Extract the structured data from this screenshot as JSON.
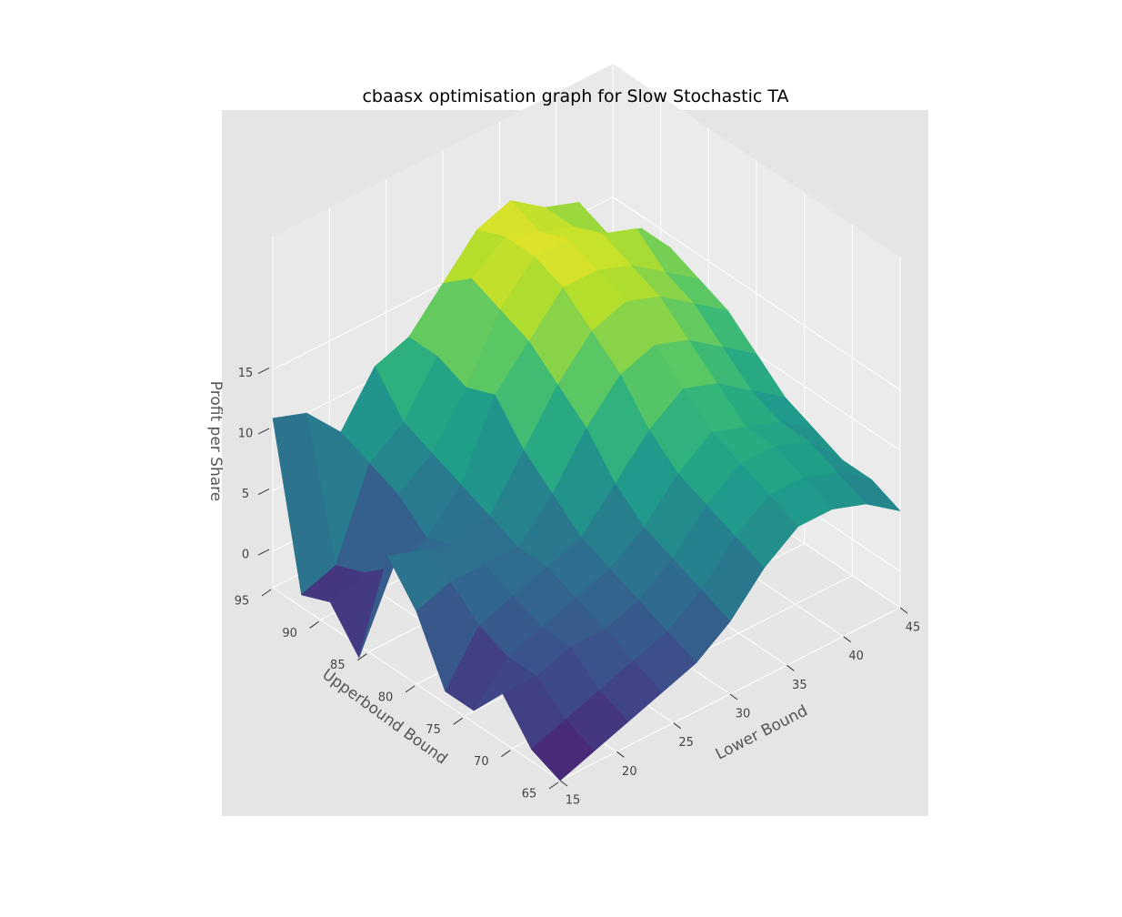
{
  "chart_data": {
    "type": "surface",
    "title": "cbaasx optimisation graph for Slow Stochastic TA",
    "xlabel": "Lower Bound",
    "ylabel": "Upperbound Bound",
    "zlabel": "Profit per Share",
    "x_ticks": [
      "15",
      "20",
      "25",
      "30",
      "35",
      "40",
      "45"
    ],
    "y_ticks": [
      "65",
      "70",
      "75",
      "80",
      "85",
      "90",
      "95"
    ],
    "z_ticks": [
      "0",
      "5",
      "10",
      "15"
    ],
    "x": [
      15,
      18,
      21,
      24,
      27,
      30,
      33,
      36,
      39,
      42,
      45
    ],
    "y": [
      95,
      92,
      89,
      86,
      83,
      80,
      77,
      74,
      71,
      68,
      65
    ],
    "z": [
      [
        11,
        10,
        7,
        11,
        12,
        15,
        18,
        19,
        17,
        16,
        11
      ],
      [
        -2,
        -1,
        6,
        8,
        12,
        17,
        19,
        18,
        17,
        15,
        14
      ],
      [
        -1,
        0,
        5,
        7,
        11,
        16,
        19,
        19,
        18,
        17,
        14
      ],
      [
        -4,
        2,
        3,
        6,
        12,
        15,
        18,
        18,
        17,
        15,
        13
      ],
      [
        6,
        5,
        4,
        5,
        9,
        13,
        16,
        17,
        16,
        14,
        12
      ],
      [
        3,
        4,
        4,
        4,
        7,
        11,
        14,
        15,
        14,
        12,
        10
      ],
      [
        -2,
        2,
        3,
        4,
        5,
        8,
        11,
        13,
        12,
        10,
        8
      ],
      [
        -2,
        1,
        2,
        3,
        4,
        6,
        9,
        11,
        10,
        9,
        7
      ],
      [
        1,
        1,
        2,
        2,
        3,
        5,
        8,
        10,
        10,
        9,
        6
      ],
      [
        -2,
        -1,
        0,
        1,
        2,
        4,
        7,
        9,
        9,
        8,
        6
      ],
      [
        -3,
        -2,
        -1,
        0,
        1,
        3,
        6,
        8,
        8,
        7,
        5
      ]
    ],
    "colormap": "viridis",
    "zlim": [
      -5,
      20
    ],
    "grid": true,
    "pane_color": "#e5e5e5"
  }
}
